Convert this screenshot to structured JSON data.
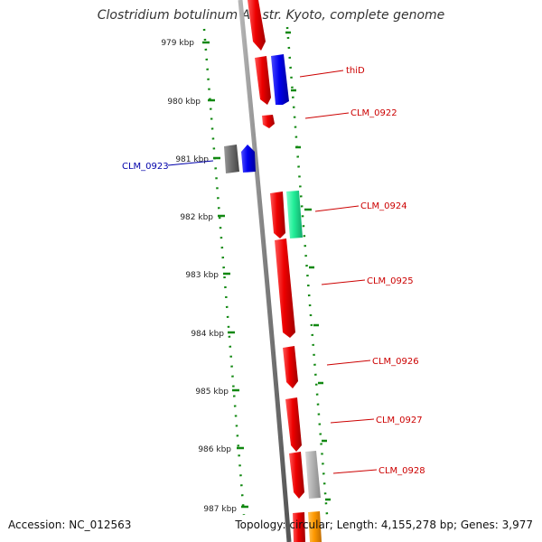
{
  "title": "Clostridium botulinum A2 str. Kyoto, complete genome",
  "footer": {
    "accession": "Accession: NC_012563",
    "topology": "Topology: circular; Length: 4,155,278 bp; Genes: 3,977"
  },
  "axis": {
    "ticks": [
      "979 kbp",
      "980 kbp",
      "981 kbp",
      "982 kbp",
      "983 kbp",
      "984 kbp",
      "985 kbp",
      "986 kbp",
      "987 kbp"
    ]
  },
  "genes": [
    {
      "label": "thiD",
      "label_color": "#cc0000",
      "fill": "#0000ee"
    },
    {
      "label": "CLM_0922",
      "label_color": "#cc0000",
      "fill": "#ee0000"
    },
    {
      "label": "CLM_0923",
      "label_color": "#0000aa",
      "fill": "#0000ee"
    },
    {
      "label": "CLM_0924",
      "label_color": "#cc0000",
      "fill": "#22ee99"
    },
    {
      "label": "CLM_0925",
      "label_color": "#cc0000",
      "fill": "#ee0000"
    },
    {
      "label": "CLM_0926",
      "label_color": "#cc0000",
      "fill": "#ee0000"
    },
    {
      "label": "CLM_0927",
      "label_color": "#cc0000",
      "fill": "#ee0000"
    },
    {
      "label": "CLM_0928",
      "label_color": "#cc0000",
      "fill": "#b0b0b0"
    }
  ],
  "colors": {
    "forward": "#ee0000",
    "reverse_blue": "#0000ee",
    "gray": "#707070",
    "light_gray": "#b0b0b0",
    "teal": "#22ee99",
    "orange": "#ff9900",
    "dotted_ring": "#118811",
    "backbone": "#808080"
  }
}
